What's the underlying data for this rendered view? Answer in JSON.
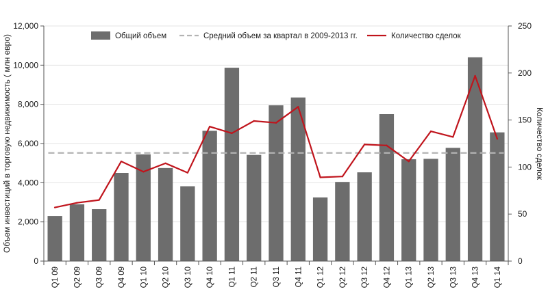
{
  "chart_data": {
    "type": "bar",
    "categories": [
      "Q1 09",
      "Q2 09",
      "Q3 09",
      "Q4 09",
      "Q1 10",
      "Q2 10",
      "Q3 10",
      "Q4 10",
      "Q1 11",
      "Q2 11",
      "Q3 11",
      "Q4 11",
      "Q1 12",
      "Q2 12",
      "Q3 12",
      "Q4 12",
      "Q1 13",
      "Q2 13",
      "Q3 13",
      "Q4 13",
      "Q1 14"
    ],
    "series": [
      {
        "name": "Общий объем",
        "type": "bar",
        "axis": "left",
        "values": [
          2300,
          2900,
          2650,
          4500,
          5450,
          4750,
          3820,
          6650,
          9870,
          5420,
          7950,
          8350,
          3250,
          4040,
          4530,
          7500,
          5200,
          5220,
          5780,
          10400,
          6570
        ]
      },
      {
        "name": "Средний объем за квартал в 2009-2013 гг.",
        "type": "dashed-line",
        "axis": "left",
        "value": 5520
      },
      {
        "name": "Количество сделок",
        "type": "line",
        "axis": "right",
        "values": [
          57,
          62,
          65,
          106,
          95,
          104,
          94,
          143,
          136,
          149,
          147,
          164,
          89,
          90,
          124,
          123,
          106,
          138,
          132,
          197,
          130
        ]
      }
    ],
    "ylabel": "Объем инвестиций в торговую недвижимость ( млн евро)",
    "ylabel_right": "Количество сделок",
    "ylim": [
      0,
      12000
    ],
    "ylim_right": [
      0,
      250
    ],
    "yticks": [
      "0",
      "2,000",
      "4,000",
      "6,000",
      "8,000",
      "10,000",
      "12,000"
    ],
    "yticks_right": [
      "0",
      "50",
      "100",
      "150",
      "200",
      "250"
    ],
    "grid": "horizontal",
    "legend_position": "top",
    "colors": {
      "bar": "#6d6d6d",
      "avg": "#b3b3b3",
      "deals": "#c0141c"
    }
  }
}
